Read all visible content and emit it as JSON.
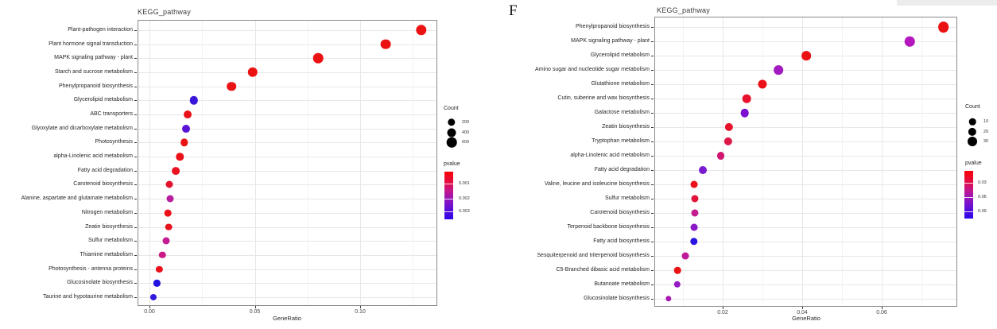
{
  "panel_label": "F",
  "chart_data": [
    {
      "type": "scatter",
      "panel": "left",
      "title": "KEGG_pathway",
      "xlabel": "GeneRatio",
      "xlim": [
        -0.005,
        0.137
      ],
      "grid": true,
      "legend_position": "right",
      "x_ticks": [
        {
          "label": "0.00",
          "value": 0.0
        },
        {
          "label": "0.05",
          "value": 0.05
        },
        {
          "label": "0.10",
          "value": 0.1
        }
      ],
      "x_minor": [
        0.025,
        0.075,
        0.125
      ],
      "legend": {
        "count_title": "Count",
        "count_items": [
          {
            "label": "200",
            "value": 200
          },
          {
            "label": "400",
            "value": 400
          },
          {
            "label": "600",
            "value": 600
          }
        ],
        "pvalue_title": "pvalue",
        "pvalue_ticks": [
          "0.001",
          "0.002",
          "0.003"
        ],
        "gradient": [
          "#fb0007",
          "#e60d3a",
          "#c4168c",
          "#8d15c0",
          "#5b0fd8",
          "#2b06ec"
        ]
      },
      "points": [
        {
          "category": "Plant-pathogen interaction",
          "gene_ratio": 0.129,
          "count": 700,
          "pvalue": 0.0005,
          "color": "#eb1214"
        },
        {
          "category": "Plant hormone signal transduction",
          "gene_ratio": 0.112,
          "count": 620,
          "pvalue": 0.0005,
          "color": "#eb1214"
        },
        {
          "category": "MAPK signaling pathway - plant",
          "gene_ratio": 0.08,
          "count": 600,
          "pvalue": 0.0005,
          "color": "#eb1214"
        },
        {
          "category": "Starch and sucrose metabolism",
          "gene_ratio": 0.049,
          "count": 580,
          "pvalue": 0.0005,
          "color": "#eb1214"
        },
        {
          "category": "Phenylpropanoid biosynthesis",
          "gene_ratio": 0.039,
          "count": 480,
          "pvalue": 0.0005,
          "color": "#eb1214"
        },
        {
          "category": "Glycerolipid metabolism",
          "gene_ratio": 0.021,
          "count": 330,
          "pvalue": 0.0029,
          "color": "#3a16dc"
        },
        {
          "category": "ABC transporters",
          "gene_ratio": 0.018,
          "count": 270,
          "pvalue": 0.0006,
          "color": "#ea1218"
        },
        {
          "category": "Glyoxylate and dicarboxylate metabolism",
          "gene_ratio": 0.0175,
          "count": 270,
          "pvalue": 0.0024,
          "color": "#5a14d6"
        },
        {
          "category": "Photosynthesis",
          "gene_ratio": 0.0165,
          "count": 210,
          "pvalue": 0.0005,
          "color": "#eb1214"
        },
        {
          "category": "alpha-Linolenic acid metabolism",
          "gene_ratio": 0.0145,
          "count": 210,
          "pvalue": 0.0006,
          "color": "#ea1218"
        },
        {
          "category": "Fatty acid degradation",
          "gene_ratio": 0.0125,
          "count": 250,
          "pvalue": 0.0006,
          "color": "#e91220"
        },
        {
          "category": "Carotenoid biosynthesis",
          "gene_ratio": 0.0095,
          "count": 150,
          "pvalue": 0.0008,
          "color": "#e41230"
        },
        {
          "category": "Alanine, aspartate and glutamate metabolism",
          "gene_ratio": 0.0098,
          "count": 150,
          "pvalue": 0.0018,
          "color": "#b81e9e"
        },
        {
          "category": "Nitrogen metabolism",
          "gene_ratio": 0.0088,
          "count": 110,
          "pvalue": 0.0006,
          "color": "#ea1218"
        },
        {
          "category": "Zeatin biosynthesis",
          "gene_ratio": 0.0092,
          "count": 110,
          "pvalue": 0.0007,
          "color": "#e8121e"
        },
        {
          "category": "Sulfur metabolism",
          "gene_ratio": 0.008,
          "count": 150,
          "pvalue": 0.0017,
          "color": "#c41c92"
        },
        {
          "category": "Thiamine metabolism",
          "gene_ratio": 0.0062,
          "count": 90,
          "pvalue": 0.0016,
          "color": "#ca1884"
        },
        {
          "category": "Photosynthesis - antenna proteins",
          "gene_ratio": 0.0047,
          "count": 60,
          "pvalue": 0.0006,
          "color": "#ea1218"
        },
        {
          "category": "Glucosinolate biosynthesis",
          "gene_ratio": 0.0035,
          "count": 60,
          "pvalue": 0.003,
          "color": "#2012e0"
        },
        {
          "category": "Taurine and hypotaurine metabolism",
          "gene_ratio": 0.002,
          "count": 40,
          "pvalue": 0.0028,
          "color": "#3018dc"
        }
      ]
    },
    {
      "type": "scatter",
      "panel": "F",
      "title": "KEGG_pathway",
      "xlabel": "GeneRatio",
      "xlim": [
        0.003,
        0.079
      ],
      "grid": true,
      "legend_position": "right",
      "x_ticks": [
        {
          "label": "0.02",
          "value": 0.02
        },
        {
          "label": "0.04",
          "value": 0.04
        },
        {
          "label": "0.06",
          "value": 0.06
        }
      ],
      "x_minor": [
        0.01,
        0.03,
        0.05,
        0.07
      ],
      "legend": {
        "count_title": "Count",
        "count_items": [
          {
            "label": "10",
            "value": 10
          },
          {
            "label": "20",
            "value": 20
          },
          {
            "label": "30",
            "value": 30
          }
        ],
        "pvalue_title": "pvalue",
        "pvalue_ticks": [
          "0.03",
          "0.06",
          "0.09"
        ],
        "gradient": [
          "#fb0007",
          "#e60d3a",
          "#c4168c",
          "#8d15c0",
          "#5b0fd8",
          "#2b06ec"
        ]
      },
      "points": [
        {
          "category": "Phenylpropanoid biosynthesis",
          "gene_ratio": 0.0755,
          "count": 40,
          "pvalue": 0.01,
          "color": "#eb1214"
        },
        {
          "category": "MAPK signaling pathway - plant",
          "gene_ratio": 0.067,
          "count": 33,
          "pvalue": 0.055,
          "color": "#b517be"
        },
        {
          "category": "Glycerolipid metabolism",
          "gene_ratio": 0.041,
          "count": 28,
          "pvalue": 0.012,
          "color": "#eb1214"
        },
        {
          "category": "Amino sugar and nucleotide sugar metabolism",
          "gene_ratio": 0.034,
          "count": 28,
          "pvalue": 0.06,
          "color": "#a21bc0"
        },
        {
          "category": "Glutathione metabolism",
          "gene_ratio": 0.03,
          "count": 25,
          "pvalue": 0.015,
          "color": "#ea1218"
        },
        {
          "category": "Cutin, suberine and wax biosynthesis",
          "gene_ratio": 0.026,
          "count": 22,
          "pvalue": 0.02,
          "color": "#e8122c"
        },
        {
          "category": "Galactose metabolism",
          "gene_ratio": 0.0255,
          "count": 22,
          "pvalue": 0.07,
          "color": "#7c12d0"
        },
        {
          "category": "Zeatin biosynthesis",
          "gene_ratio": 0.0215,
          "count": 20,
          "pvalue": 0.022,
          "color": "#e6132b"
        },
        {
          "category": "Tryptophan metabolism",
          "gene_ratio": 0.0213,
          "count": 20,
          "pvalue": 0.028,
          "color": "#dc1748"
        },
        {
          "category": "alpha-Linolenic acid metabolism",
          "gene_ratio": 0.0195,
          "count": 18,
          "pvalue": 0.035,
          "color": "#d0166e"
        },
        {
          "category": "Fatty acid degradation",
          "gene_ratio": 0.015,
          "count": 18,
          "pvalue": 0.07,
          "color": "#7a1bd0"
        },
        {
          "category": "Valine, leucine and isoleucine biosynthesis",
          "gene_ratio": 0.0128,
          "count": 12,
          "pvalue": 0.012,
          "color": "#ea1218"
        },
        {
          "category": "Sulfur metabolism",
          "gene_ratio": 0.013,
          "count": 13,
          "pvalue": 0.025,
          "color": "#e01438"
        },
        {
          "category": "Carotenoid biosynthesis",
          "gene_ratio": 0.013,
          "count": 13,
          "pvalue": 0.045,
          "color": "#c41c8e"
        },
        {
          "category": "Terpenoid backbone biosynthesis",
          "gene_ratio": 0.0128,
          "count": 12,
          "pvalue": 0.065,
          "color": "#8a1ac8"
        },
        {
          "category": "Fatty acid biosynthesis",
          "gene_ratio": 0.0128,
          "count": 15,
          "pvalue": 0.085,
          "color": "#2a14e0"
        },
        {
          "category": "Sesquiterpenoid and triterpenoid biosynthesis",
          "gene_ratio": 0.0106,
          "count": 12,
          "pvalue": 0.05,
          "color": "#be1a9a"
        },
        {
          "category": "C5-Branched dibasic acid metabolism",
          "gene_ratio": 0.0086,
          "count": 10,
          "pvalue": 0.012,
          "color": "#eb1214"
        },
        {
          "category": "Butanoate metabolism",
          "gene_ratio": 0.0085,
          "count": 9,
          "pvalue": 0.06,
          "color": "#941ac4"
        },
        {
          "category": "Glucosinolate biosynthesis",
          "gene_ratio": 0.0064,
          "count": 3,
          "pvalue": 0.055,
          "color": "#aa18b4"
        }
      ]
    }
  ]
}
